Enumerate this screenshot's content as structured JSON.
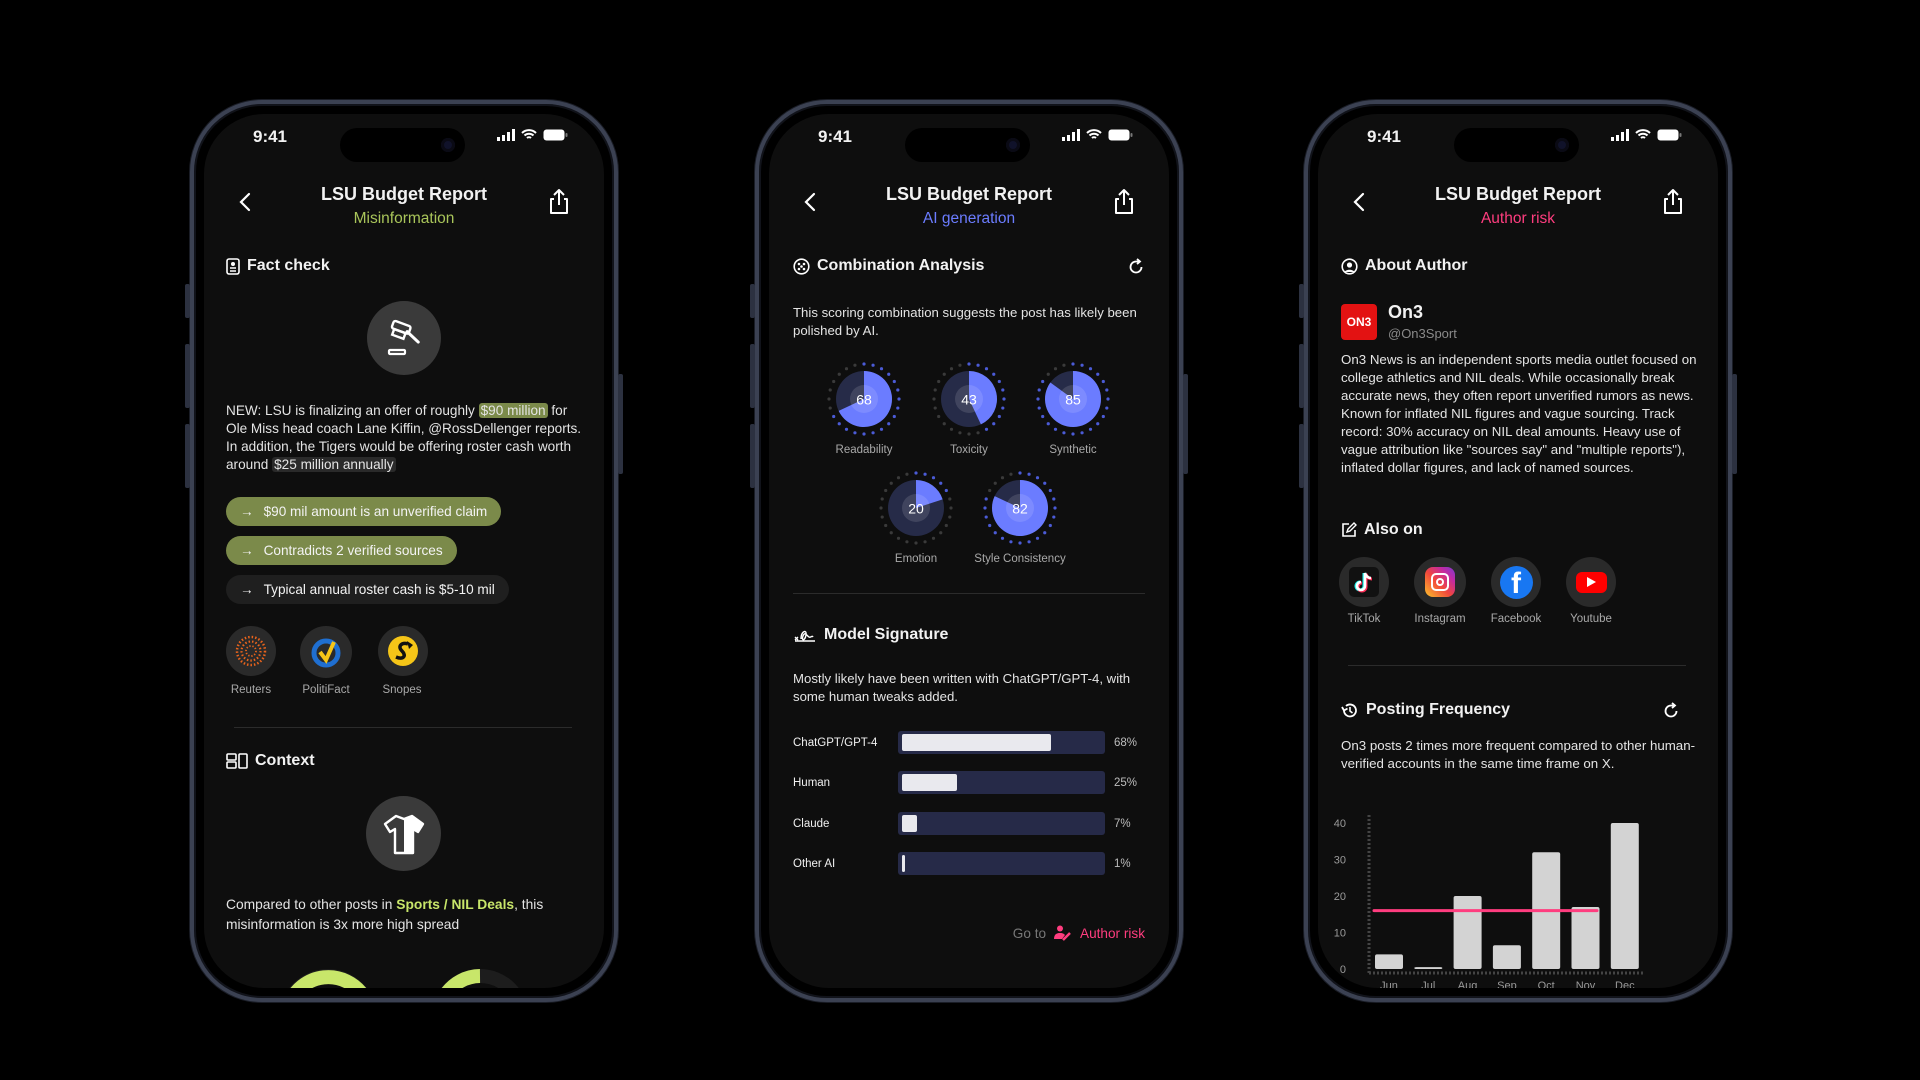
{
  "status_bar": {
    "time": "9:41"
  },
  "colors": {
    "misinformation": "#a9c55a",
    "ai_generation": "#6b7cff",
    "author_risk": "#ff3d7f",
    "pill_green": "#7b8a4a",
    "highlight_lime": "#c8e66a"
  },
  "phone1": {
    "title": "LSU Budget Report",
    "subtitle": "Misinformation",
    "fact_check": {
      "heading": "Fact check",
      "icon": "gavel-icon",
      "text_before": "NEW: LSU is finalizing an offer of roughly ",
      "highlight1": "$90 million",
      "text_middle": " for Ole Miss head coach Lane Kiffin, @RossDellenger reports. In addition, the Tigers would be offering roster cash worth around ",
      "highlight2": "$25 million annually",
      "claims": [
        {
          "label": "$90 mil amount is an unverified claim",
          "style": "green"
        },
        {
          "label": "Contradicts 2 verified sources",
          "style": "green"
        },
        {
          "label": "Typical annual roster cash is $5-10 mil",
          "style": "dark"
        }
      ],
      "sources": [
        {
          "name": "Reuters",
          "icon": "reuters-logo"
        },
        {
          "name": "PolitiFact",
          "icon": "politifact-logo"
        },
        {
          "name": "Snopes",
          "icon": "snopes-logo"
        }
      ]
    },
    "context": {
      "heading": "Context",
      "icon": "jersey-icon",
      "text_before": "Compared to other posts in ",
      "category": "Sports / NIL Deals",
      "text_after": ", this misinformation is 3x more high spread"
    }
  },
  "phone2": {
    "title": "LSU Budget Report",
    "subtitle": "AI generation",
    "combination": {
      "heading": "Combination Analysis",
      "description": "This scoring combination suggests the post has likely been polished by AI.",
      "scores": [
        {
          "label": "Readability",
          "value": 68
        },
        {
          "label": "Toxicity",
          "value": 43
        },
        {
          "label": "Synthetic",
          "value": 85
        },
        {
          "label": "Emotion",
          "value": 20
        },
        {
          "label": "Style Consistency",
          "value": 82
        }
      ]
    },
    "model_signature": {
      "heading": "Model Signature",
      "description": "Mostly likely have been written with ChatGPT/GPT-4, with some human tweaks added.",
      "models": [
        {
          "label": "ChatGPT/GPT-4",
          "value": 68,
          "pct": "68%"
        },
        {
          "label": "Human",
          "value": 25,
          "pct": "25%"
        },
        {
          "label": "Claude",
          "value": 7,
          "pct": "7%"
        },
        {
          "label": "Other AI",
          "value": 1,
          "pct": "1%"
        }
      ]
    },
    "goto": {
      "prefix": "Go to",
      "link": "Author risk"
    }
  },
  "phone3": {
    "title": "LSU Budget Report",
    "subtitle": "Author risk",
    "about": {
      "heading": "About Author",
      "logo_text": "ON3",
      "name": "On3",
      "handle": "@On3Sport",
      "bio": "On3 News is an independent sports media outlet focused on college athletics and NIL deals. While occasionally break accurate news, they often report unverified rumors as news. Known for inflated NIL figures and vague sourcing. Track record: 30% accuracy on NIL deal amounts. Heavy use of vague attribution like \"sources say\" and \"multiple reports\"), inflated dollar figures, and lack of named sources."
    },
    "also_on": {
      "heading": "Also on",
      "platforms": [
        {
          "name": "TikTok",
          "icon": "tiktok-logo"
        },
        {
          "name": "Instagram",
          "icon": "instagram-logo"
        },
        {
          "name": "Facebook",
          "icon": "facebook-logo"
        },
        {
          "name": "Youtube",
          "icon": "youtube-logo"
        }
      ]
    },
    "posting_frequency": {
      "heading": "Posting Frequency",
      "description": "On3 posts 2 times more frequent compared to other human-verified accounts in the same time frame on X.",
      "chart": {
        "type": "bar",
        "categories": [
          "Jun",
          "Jul",
          "Aug",
          "Sep",
          "Oct",
          "Nov",
          "Dec"
        ],
        "values": [
          4,
          0.5,
          20,
          6.5,
          32,
          17,
          40
        ],
        "reference_line": 16,
        "yticks": [
          "0",
          "10",
          "20",
          "30",
          "40"
        ],
        "ylim": [
          0,
          40
        ]
      }
    }
  }
}
